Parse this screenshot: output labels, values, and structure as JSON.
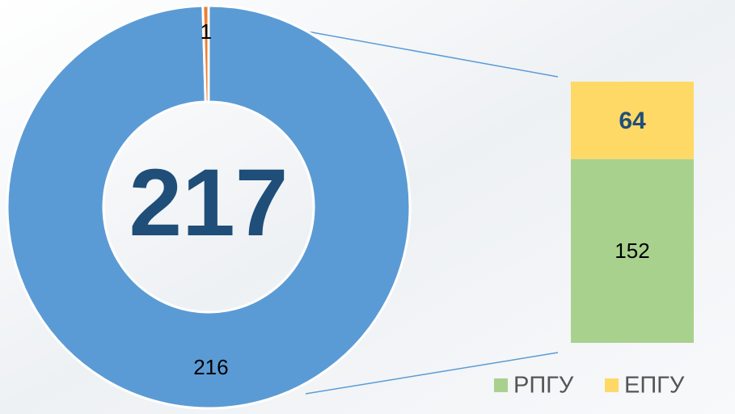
{
  "chart_data": [
    {
      "type": "donut",
      "total": 217,
      "values": [
        216,
        1
      ],
      "colors": [
        "#5b9bd5",
        "#ed7d31"
      ]
    },
    {
      "type": "stacked_bar",
      "series": [
        {
          "name": "РПГУ",
          "color": "#a9d18e",
          "values": [
            152
          ]
        },
        {
          "name": "ЕПГУ",
          "color": "#ffd966",
          "values": [
            64
          ]
        }
      ]
    }
  ]
}
